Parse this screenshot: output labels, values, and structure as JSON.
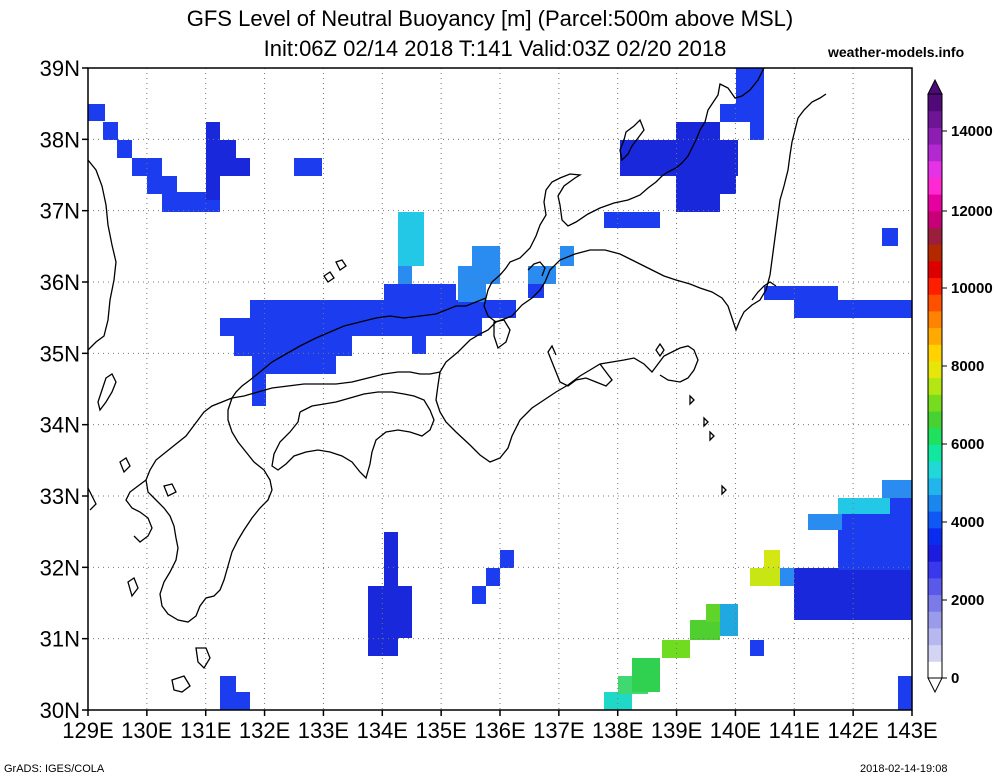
{
  "title_line1": "GFS Level of Neutral Buoyancy [m] (Parcel:500m above MSL)",
  "title_line2": "Init:06Z 02/14 2018 T:141 Valid:03Z 02/20 2018",
  "site": "weather-models.info",
  "credit": "GrADS: IGES/COLA",
  "timestamp": "2018-02-14-19:08",
  "lon_labels": [
    "129E",
    "130E",
    "131E",
    "132E",
    "133E",
    "134E",
    "135E",
    "136E",
    "137E",
    "138E",
    "139E",
    "140E",
    "141E",
    "142E",
    "143E"
  ],
  "lat_labels": [
    "39N",
    "38N",
    "37N",
    "36N",
    "35N",
    "34N",
    "33N",
    "32N",
    "31N",
    "30N"
  ],
  "colorbar": {
    "labels": [
      "14000",
      "12000",
      "10000",
      "8000",
      "6000",
      "4000",
      "2000",
      "0"
    ],
    "colors": [
      "#ffffff",
      "#d4d4f5",
      "#b8b8f0",
      "#9b9bec",
      "#7a7ae8",
      "#5a5aea",
      "#3838ee",
      "#1c1ce0",
      "#0a2cf0",
      "#1058f5",
      "#1a86ee",
      "#22b4ec",
      "#20d8d8",
      "#10e8a0",
      "#20e060",
      "#46d232",
      "#78dc1e",
      "#b4e614",
      "#e6e60a",
      "#ffd200",
      "#ffaa00",
      "#ff8200",
      "#ff5000",
      "#ff1e00",
      "#dc0000",
      "#b42800",
      "#9b1e3c",
      "#c80078",
      "#e600a0",
      "#ff28d2",
      "#e632e6",
      "#b428d2",
      "#8c1eb4",
      "#6e1496",
      "#500a78"
    ],
    "pointer_colors": {
      "top": "#500a78",
      "bottom": "#ffffff"
    }
  },
  "map": {
    "background": "#ffffff",
    "grid_color": "#777777",
    "coast_color": "#000000"
  }
}
